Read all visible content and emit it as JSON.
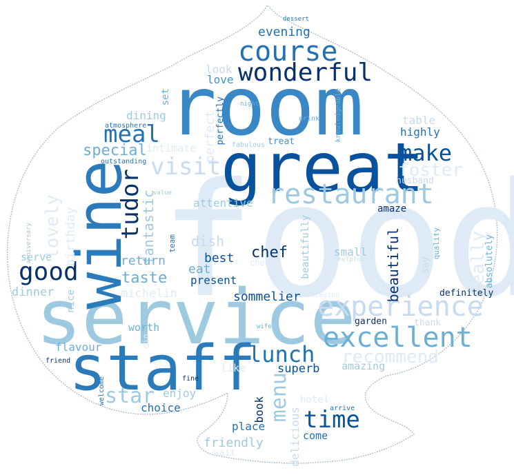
{
  "palette": {
    "outline": "#9eb3c9",
    "darkest": "#08306b",
    "dark": "#08519c",
    "mid": "#2171b5",
    "blue": "#4292c6",
    "light": "#6baed6",
    "pale": "#9ecae1",
    "faint": "#c6dbef",
    "faintest": "#deebf7"
  },
  "shape": "spade",
  "words": [
    {
      "text": "food",
      "color": "#deebf7"
    },
    {
      "text": "room",
      "color": "#3a87c5"
    },
    {
      "text": "service",
      "color": "#9ecae1"
    },
    {
      "text": "great",
      "color": "#08519c"
    },
    {
      "text": "staff",
      "color": "#2b7bba"
    },
    {
      "text": "wine",
      "color": "#2b7bba"
    },
    {
      "text": "restaurant",
      "color": "#9ecae1"
    },
    {
      "text": "experience",
      "color": "#c6dbef"
    },
    {
      "text": "excellent",
      "color": "#6baed6"
    },
    {
      "text": "course",
      "color": "#2171b5"
    },
    {
      "text": "wonderful",
      "color": "#08306b"
    },
    {
      "text": "visit",
      "color": "#c6dbef"
    },
    {
      "text": "tudor",
      "color": "#08306b"
    },
    {
      "text": "meal",
      "color": "#2171b5"
    },
    {
      "text": "make",
      "color": "#08519c"
    },
    {
      "text": "good",
      "color": "#08306b"
    },
    {
      "text": "lunch",
      "color": "#2171b5"
    },
    {
      "text": "time",
      "color": "#08519c"
    },
    {
      "text": "menu",
      "color": "#9ecae1"
    },
    {
      "text": "star",
      "color": "#9ecae1"
    },
    {
      "text": "lovely",
      "color": "#deebf7"
    },
    {
      "text": "recommend",
      "color": "#deebf7"
    },
    {
      "text": "foster",
      "color": "#deebf7"
    },
    {
      "text": "really",
      "color": "#deebf7"
    },
    {
      "text": "fantastic",
      "color": "#9ecae1"
    },
    {
      "text": "special",
      "color": "#6baed6"
    },
    {
      "text": "perfect",
      "color": "#deebf7"
    },
    {
      "text": "beautiful",
      "color": "#08306b"
    },
    {
      "text": "chef",
      "color": "#08306b"
    },
    {
      "text": "taste",
      "color": "#6baed6"
    },
    {
      "text": "return",
      "color": "#6baed6"
    },
    {
      "text": "dish",
      "color": "#c6dbef"
    },
    {
      "text": "best",
      "color": "#08519c"
    },
    {
      "text": "eat",
      "color": "#6baed6"
    },
    {
      "text": "present",
      "color": "#08519c"
    },
    {
      "text": "sommelier",
      "color": "#08519c"
    },
    {
      "text": "attentive",
      "color": "#9ecae1"
    },
    {
      "text": "evening",
      "color": "#2171b5"
    },
    {
      "text": "look",
      "color": "#c6dbef"
    },
    {
      "text": "love",
      "color": "#4292c6"
    },
    {
      "text": "intimate",
      "color": "#deebf7"
    },
    {
      "text": "dining",
      "color": "#9ecae1"
    },
    {
      "text": "birthday",
      "color": "#deebf7"
    },
    {
      "text": "table",
      "color": "#c6dbef"
    },
    {
      "text": "highly",
      "color": "#2171b5"
    },
    {
      "text": "husband",
      "color": "#c6dbef"
    },
    {
      "text": "amaze",
      "color": "#08306b"
    },
    {
      "text": "small",
      "color": "#9ecae1"
    },
    {
      "text": "beautifully",
      "color": "#9ecae1"
    },
    {
      "text": "dinner",
      "color": "#9ecae1"
    },
    {
      "text": "michelin",
      "color": "#deebf7"
    },
    {
      "text": "serve",
      "color": "#9ecae1"
    },
    {
      "text": "definitely",
      "color": "#08306b"
    },
    {
      "text": "say",
      "color": "#c6dbef"
    },
    {
      "text": "absolutely",
      "color": "#6baed6"
    },
    {
      "text": "garden",
      "color": "#08306b"
    },
    {
      "text": "thank",
      "color": "#c6dbef"
    },
    {
      "text": "flavour",
      "color": "#6baed6"
    },
    {
      "text": "worth",
      "color": "#6baed6"
    },
    {
      "text": "superb",
      "color": "#08519c"
    },
    {
      "text": "amazing",
      "color": "#9ecae1"
    },
    {
      "text": "enjoy",
      "color": "#9ecae1"
    },
    {
      "text": "choice",
      "color": "#2171b5"
    },
    {
      "text": "book",
      "color": "#08306b"
    },
    {
      "text": "delicious",
      "color": "#c6dbef"
    },
    {
      "text": "hotel",
      "color": "#deebf7"
    },
    {
      "text": "place",
      "color": "#2171b5"
    },
    {
      "text": "friendly",
      "color": "#9ecae1"
    },
    {
      "text": "come",
      "color": "#2171b5"
    },
    {
      "text": "like",
      "color": "#deebf7"
    },
    {
      "text": "wait",
      "color": "#deebf7"
    },
    {
      "text": "treat",
      "color": "#4292c6"
    },
    {
      "text": "perfectly",
      "color": "#2171b5"
    },
    {
      "text": "set",
      "color": "#6baed6"
    },
    {
      "text": "quality",
      "color": "#6baed6"
    },
    {
      "text": "cheese",
      "color": "#deebf7"
    },
    {
      "text": "nice",
      "color": "#9ecae1"
    },
    {
      "text": "team",
      "color": "#2171b5"
    },
    {
      "text": "din",
      "color": "#deebf7"
    },
    {
      "text": "fabulous",
      "color": "#9ecae1"
    },
    {
      "text": "knowledgeable",
      "color": "#6baed6"
    },
    {
      "text": "night",
      "color": "#6baed6"
    },
    {
      "text": "drink",
      "color": "#6baed6"
    },
    {
      "text": "atmosphere",
      "color": "#2171b5"
    },
    {
      "text": "outstanding",
      "color": "#2171b5"
    },
    {
      "text": "value",
      "color": "#9ecae1"
    },
    {
      "text": "anniversary",
      "color": "#9ecae1"
    },
    {
      "text": "welcome",
      "color": "#2171b5"
    },
    {
      "text": "friend",
      "color": "#08306b"
    },
    {
      "text": "fine",
      "color": "#08306b"
    },
    {
      "text": "wife",
      "color": "#6baed6"
    },
    {
      "text": "arrive",
      "color": "#2171b5"
    },
    {
      "text": "helpful",
      "color": "#c6dbef"
    },
    {
      "text": "occasion",
      "color": "#deebf7"
    },
    {
      "text": "dessert",
      "color": "#2171b5"
    }
  ]
}
